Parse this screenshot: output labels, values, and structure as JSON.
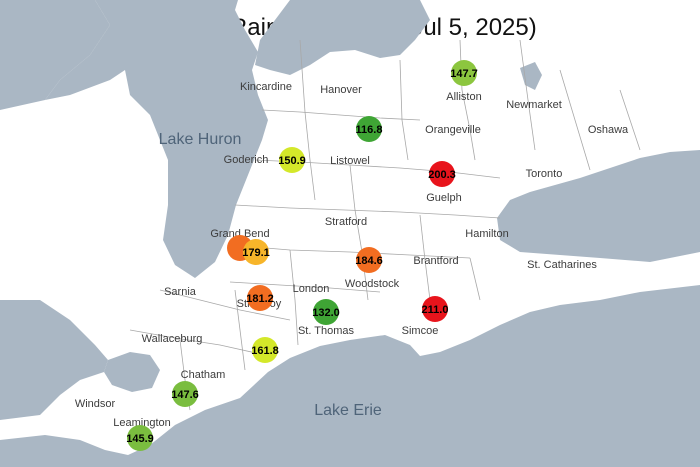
{
  "title": "Accm Rainfall (May 1 - Jul 5, 2025)",
  "lakes": [
    {
      "id": "lake-huron",
      "name": "Lake Huron"
    },
    {
      "id": "lake-erie",
      "name": "Lake Erie"
    }
  ],
  "places": [
    {
      "name": "Kincardine"
    },
    {
      "name": "Hanover"
    },
    {
      "name": "Alliston"
    },
    {
      "name": "Newmarket"
    },
    {
      "name": "Orangeville"
    },
    {
      "name": "Oshawa"
    },
    {
      "name": "Goderich"
    },
    {
      "name": "Listowel"
    },
    {
      "name": "Toronto"
    },
    {
      "name": "Guelph"
    },
    {
      "name": "Grand Bend"
    },
    {
      "name": "Stratford"
    },
    {
      "name": "Hamilton"
    },
    {
      "name": "Brantford"
    },
    {
      "name": "St. Catharines"
    },
    {
      "name": "Sarnia"
    },
    {
      "name": "London"
    },
    {
      "name": "Woodstock"
    },
    {
      "name": "Strathroy"
    },
    {
      "name": "St. Thomas"
    },
    {
      "name": "Simcoe"
    },
    {
      "name": "Wallaceburg"
    },
    {
      "name": "Chatham"
    },
    {
      "name": "Windsor"
    },
    {
      "name": "Leamington"
    }
  ],
  "stations": [
    {
      "value": "147.7",
      "color": "#8cc63f"
    },
    {
      "value": "116.8",
      "color": "#3fa535"
    },
    {
      "value": "150.9",
      "color": "#d4e82a"
    },
    {
      "value": "200.3",
      "color": "#e8141c"
    },
    {
      "value": "179.1",
      "color": "#f7b52a"
    },
    {
      "value": "184.6",
      "color": "#f26d21"
    },
    {
      "value": "181.2",
      "color": "#f26d21"
    },
    {
      "value": "132.0",
      "color": "#3fa535"
    },
    {
      "value": "211.0",
      "color": "#e8141c"
    },
    {
      "value": "161.8",
      "color": "#d4e82a"
    },
    {
      "value": "147.6",
      "color": "#7abd3f"
    },
    {
      "value": "145.9",
      "color": "#7abd3f"
    }
  ],
  "colors": {
    "water": "#aab7c4",
    "land": "#ffffff",
    "boundary": "#a8a8a8",
    "lake_label": "#4f6479",
    "place_label": "#3c3c3c",
    "station_2_ring": "#f26d21"
  }
}
